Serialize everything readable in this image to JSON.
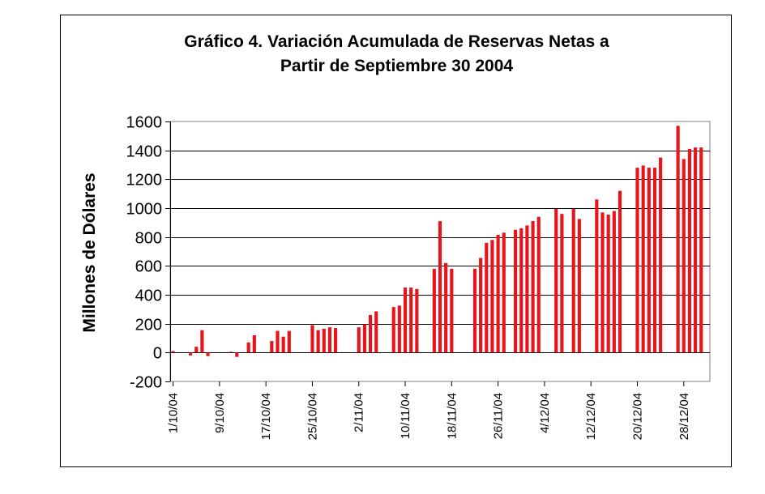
{
  "chart_data": {
    "type": "bar",
    "title_line1": "Gráfico 4. Variación Acumulada de Reservas Netas a",
    "title_line2": "Partir de Septiembre 30 2004",
    "ylabel": "Millones de Dólares",
    "xlabel": "",
    "ylim": [
      -200,
      1600
    ],
    "y_ticks": [
      "1600",
      "1400",
      "1200",
      "1000",
      "800",
      "600",
      "400",
      "200",
      "0",
      "-200"
    ],
    "y_tick_values": [
      1600,
      1400,
      1200,
      1000,
      800,
      600,
      400,
      200,
      0,
      -200
    ],
    "x_tick_labels": [
      "1/10/04",
      "9/10/04",
      "17/10/04",
      "25/10/04",
      "2/11/04",
      "10/11/04",
      "18/11/04",
      "26/11/04",
      "4/12/04",
      "12/12/04",
      "20/12/04",
      "28/12/04"
    ],
    "x_tick_days": [
      0,
      8,
      16,
      24,
      32,
      40,
      48,
      56,
      64,
      72,
      80,
      88
    ],
    "grid": true,
    "colors": {
      "bar": "#e8141c",
      "grid": "#000000",
      "plot_bg": "#ffffff"
    },
    "series": [
      {
        "name": "Variación acumulada",
        "days": [
          0,
          3,
          4,
          5,
          6,
          10,
          11,
          13,
          14,
          17,
          18,
          19,
          20,
          24,
          25,
          26,
          27,
          28,
          32,
          33,
          34,
          35,
          38,
          39,
          40,
          41,
          42,
          45,
          46,
          47,
          48,
          52,
          53,
          54,
          55,
          56,
          57,
          59,
          60,
          61,
          62,
          63,
          66,
          67,
          69,
          70,
          73,
          74,
          75,
          76,
          77,
          80,
          81,
          82,
          83,
          84,
          87,
          88,
          89,
          90,
          91
        ],
        "values": [
          10,
          -20,
          40,
          155,
          -25,
          5,
          -30,
          70,
          120,
          80,
          150,
          110,
          150,
          190,
          155,
          165,
          175,
          170,
          175,
          195,
          260,
          285,
          315,
          325,
          450,
          450,
          440,
          580,
          910,
          620,
          580,
          580,
          655,
          760,
          780,
          815,
          830,
          850,
          860,
          880,
          910,
          940,
          995,
          960,
          995,
          925,
          1060,
          970,
          955,
          980,
          1120,
          1280,
          1295,
          1280,
          1280,
          1350,
          1570,
          1340,
          1410,
          1420,
          1420
        ]
      }
    ]
  }
}
